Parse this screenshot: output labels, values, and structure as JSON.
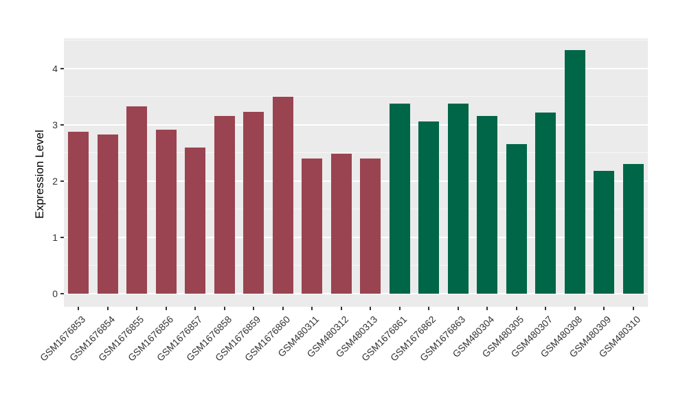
{
  "figure": {
    "background": "#FFFFFF",
    "panel_background": "#EBEBEB",
    "grid_major_color": "#FFFFFF",
    "grid_minor_color": "#F7F7F7",
    "axis_text_color": "#333333",
    "axis_title_color": "#000000"
  },
  "chart_data": {
    "type": "bar",
    "title": "",
    "xlabel": "",
    "ylabel": "Expression Level",
    "ylim": [
      -0.23,
      4.53
    ],
    "yticks": [
      0,
      1,
      2,
      3,
      4
    ],
    "grid": {
      "major_at": [
        0,
        1,
        2,
        3,
        4
      ],
      "minor_at": [
        0.5,
        1.5,
        2.5,
        3.5,
        4.5
      ],
      "grid_on": true
    },
    "legend": "none",
    "bar_orientation": "vertical",
    "categories": [
      "GSM1676853",
      "GSM1676854",
      "GSM1676855",
      "GSM1676856",
      "GSM1676857",
      "GSM1676858",
      "GSM1676859",
      "GSM1676860",
      "GSM480311",
      "GSM480312",
      "GSM480313",
      "GSM1676861",
      "GSM1676862",
      "GSM1676863",
      "GSM480304",
      "GSM480305",
      "GSM480307",
      "GSM480308",
      "GSM480309",
      "GSM480310"
    ],
    "values": [
      2.87,
      2.82,
      3.33,
      2.91,
      2.6,
      3.16,
      3.23,
      3.5,
      2.4,
      2.49,
      2.4,
      3.37,
      3.06,
      3.38,
      3.15,
      2.66,
      3.21,
      4.32,
      2.18,
      2.3
    ],
    "bar_groups": [
      "group1",
      "group1",
      "group1",
      "group1",
      "group1",
      "group1",
      "group1",
      "group1",
      "group1",
      "group1",
      "group1",
      "group2",
      "group2",
      "group2",
      "group2",
      "group2",
      "group2",
      "group2",
      "group2",
      "group2"
    ],
    "group_colors": {
      "group1": "#9A4451",
      "group2": "#006648"
    }
  }
}
